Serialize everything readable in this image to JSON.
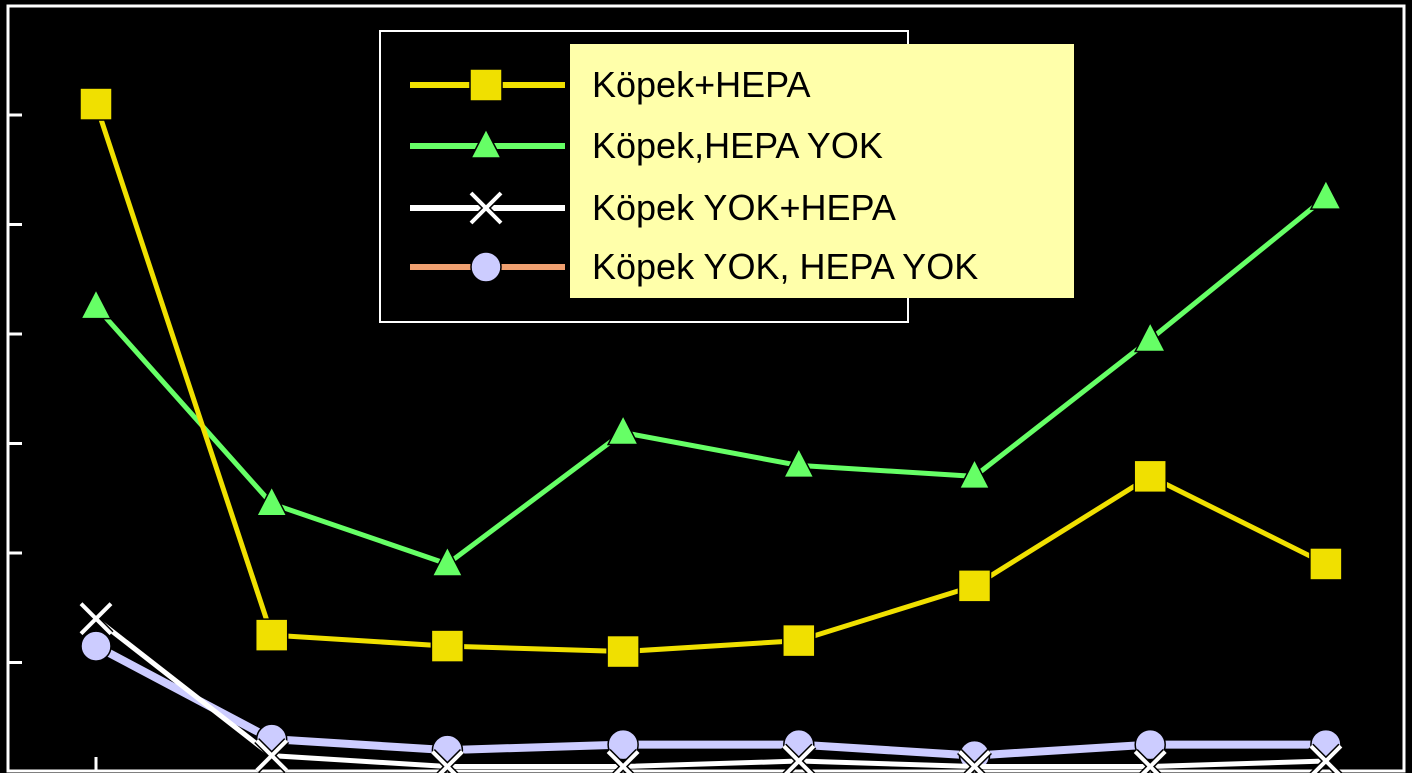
{
  "chart_data": {
    "type": "line",
    "title": "",
    "xlabel": "",
    "ylabel": "",
    "x": [
      1,
      2,
      3,
      4,
      5,
      6,
      7,
      8
    ],
    "ylim": [
      0,
      7
    ],
    "yticks": [
      1,
      2,
      3,
      4,
      5,
      6
    ],
    "grid": false,
    "legend_placement": "top-center",
    "background": "#000000",
    "legend_box_fill": "#ffffaa",
    "series": [
      {
        "name": "Köpek+HEPA",
        "values": [
          6.1,
          1.25,
          1.15,
          1.1,
          1.2,
          1.7,
          2.7,
          1.9
        ],
        "color": "#f0e000",
        "marker": "square",
        "marker_fill": "#f0e000"
      },
      {
        "name": "Köpek,HEPA YOK",
        "values": [
          4.25,
          2.45,
          1.9,
          3.1,
          2.8,
          2.7,
          3.95,
          5.25
        ],
        "color": "#66ff66",
        "marker": "triangle",
        "marker_fill": "#66ff66"
      },
      {
        "name": "Köpek YOK+HEPA",
        "values": [
          1.4,
          0.15,
          0.05,
          0.05,
          0.1,
          0.05,
          0.05,
          0.1
        ],
        "color": "#ffffff",
        "marker": "x",
        "marker_fill": "#ffffff"
      },
      {
        "name": "Köpek YOK, HEPA YOK",
        "values": [
          1.15,
          0.3,
          0.2,
          0.25,
          0.25,
          0.15,
          0.25,
          0.25
        ],
        "color": "#ccccff",
        "legend_line_color": "#f0a070",
        "marker": "circle",
        "marker_fill": "#ccccff"
      }
    ]
  }
}
